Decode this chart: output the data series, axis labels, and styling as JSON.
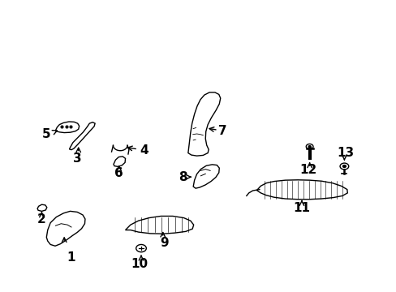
{
  "background_color": "#ffffff",
  "line_color": "#000000",
  "text_color": "#000000"
}
